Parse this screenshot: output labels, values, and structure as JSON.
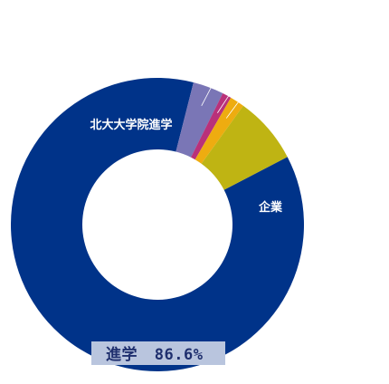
{
  "chart_data": {
    "type": "pie",
    "donut": true,
    "slices": [
      {
        "label": "北大大学院進学",
        "value": 86.6,
        "color": "#003389"
      },
      {
        "label": "",
        "value": 3.4,
        "color": "#7a76b6"
      },
      {
        "label": "",
        "value": 1.0,
        "color": "#b9317a"
      },
      {
        "label": "",
        "value": 1.6,
        "color": "#eeac10"
      },
      {
        "label": "企業",
        "value": 7.4,
        "color": "#bfb413"
      }
    ],
    "summary_label": {
      "text": "進学",
      "value_text": "86.6%"
    }
  }
}
